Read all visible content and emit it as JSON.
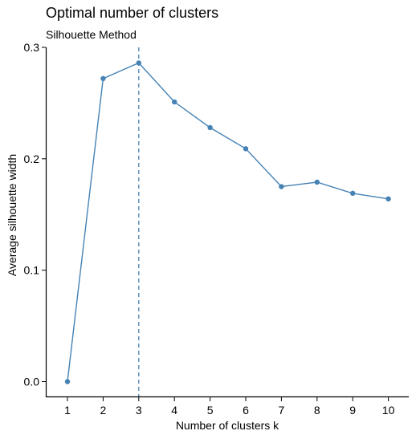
{
  "chart_data": {
    "type": "line",
    "title": "Optimal number of clusters",
    "subtitle": "Silhouette Method",
    "xlabel": "Number of clusters k",
    "ylabel": "Average silhouette width",
    "x": [
      "1",
      "2",
      "3",
      "4",
      "5",
      "6",
      "7",
      "8",
      "9",
      "10"
    ],
    "y": [
      0.0,
      0.272,
      0.286,
      0.251,
      0.228,
      0.209,
      0.175,
      0.179,
      0.169,
      0.164
    ],
    "ylim": [
      0,
      0.3
    ],
    "y_ticks": [
      "0.0",
      "0.1",
      "0.2",
      "0.3"
    ],
    "y_tick_values": [
      0,
      0.1,
      0.2,
      0.3
    ],
    "optimal_k": 3,
    "line_color": "#4682b4",
    "grid": false
  }
}
